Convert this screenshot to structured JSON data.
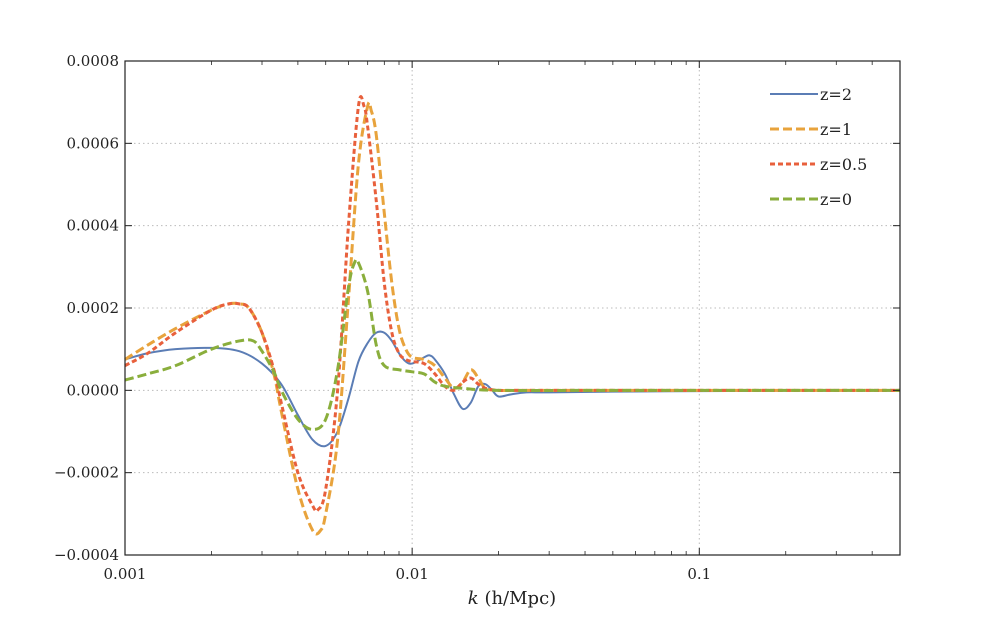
{
  "chart_data": {
    "type": "line",
    "title": "",
    "xlabel_italic": "k",
    "xlabel_rest": " (h/Mpc)",
    "ylabel": "",
    "x_scale": "log",
    "xlim": [
      0.001,
      0.5
    ],
    "ylim": [
      -0.0004,
      0.0008
    ],
    "x_ticks": [
      {
        "value": 0.001,
        "label": "0.001"
      },
      {
        "value": 0.01,
        "label": "0.01"
      },
      {
        "value": 0.1,
        "label": "0.1"
      }
    ],
    "y_ticks": [
      {
        "value": 0.0008,
        "label": "0.0008"
      },
      {
        "value": 0.0006,
        "label": "0.0006"
      },
      {
        "value": 0.0004,
        "label": "0.0004"
      },
      {
        "value": 0.0002,
        "label": "0.0002"
      },
      {
        "value": 0.0,
        "label": "0.0000"
      },
      {
        "value": -0.0002,
        "label": "−0.0002"
      },
      {
        "value": -0.0004,
        "label": "−0.0004"
      }
    ],
    "grid": true,
    "legend_position": "top-right",
    "series": [
      {
        "name": "z=2",
        "color": "#5b7db5",
        "style": "solid",
        "points": [
          [
            0.001,
            7.5e-05
          ],
          [
            0.0012,
            9e-05
          ],
          [
            0.0015,
            0.0001
          ],
          [
            0.002,
            0.000103
          ],
          [
            0.0025,
            9.5e-05
          ],
          [
            0.003,
            6.5e-05
          ],
          [
            0.0035,
            1.5e-05
          ],
          [
            0.004,
            -6e-05
          ],
          [
            0.0045,
            -0.00012
          ],
          [
            0.005,
            -0.000135
          ],
          [
            0.0055,
            -0.0001
          ],
          [
            0.006,
            -2e-05
          ],
          [
            0.0065,
            7e-05
          ],
          [
            0.007,
            0.000115
          ],
          [
            0.0075,
            0.00014
          ],
          [
            0.008,
            0.00014
          ],
          [
            0.0085,
            0.00012
          ],
          [
            0.009,
            9e-05
          ],
          [
            0.0095,
            7e-05
          ],
          [
            0.01,
            6.5e-05
          ],
          [
            0.011,
            8e-05
          ],
          [
            0.0115,
            8.5e-05
          ],
          [
            0.012,
            7.5e-05
          ],
          [
            0.013,
            4e-05
          ],
          [
            0.014,
            -1e-05
          ],
          [
            0.015,
            -4.5e-05
          ],
          [
            0.016,
            -3e-05
          ],
          [
            0.017,
            1e-05
          ],
          [
            0.018,
            1.5e-05
          ],
          [
            0.019,
            0.0
          ],
          [
            0.02,
            -1.5e-05
          ],
          [
            0.022,
            -1e-05
          ],
          [
            0.025,
            -5e-06
          ],
          [
            0.03,
            -5e-06
          ],
          [
            0.05,
            -3e-06
          ],
          [
            0.1,
            -2e-06
          ],
          [
            0.2,
            -1e-06
          ],
          [
            0.5,
            -1e-06
          ]
        ]
      },
      {
        "name": "z=1",
        "color": "#e8a33c",
        "style": "dashed",
        "points": [
          [
            0.001,
            7.5e-05
          ],
          [
            0.0012,
            0.00011
          ],
          [
            0.0015,
            0.00015
          ],
          [
            0.002,
            0.000195
          ],
          [
            0.0023,
            0.00021
          ],
          [
            0.0025,
            0.00021
          ],
          [
            0.0027,
            0.0002
          ],
          [
            0.003,
            0.00014
          ],
          [
            0.0033,
            4e-05
          ],
          [
            0.0035,
            -5e-05
          ],
          [
            0.004,
            -0.00024
          ],
          [
            0.0045,
            -0.00034
          ],
          [
            0.0048,
            -0.00034
          ],
          [
            0.005,
            -0.0003
          ],
          [
            0.0055,
            -0.00012
          ],
          [
            0.006,
            0.00022
          ],
          [
            0.0065,
            0.00055
          ],
          [
            0.007,
            0.00069
          ],
          [
            0.0072,
            0.00068
          ],
          [
            0.0075,
            0.00062
          ],
          [
            0.008,
            0.00043
          ],
          [
            0.0085,
            0.00026
          ],
          [
            0.009,
            0.00015
          ],
          [
            0.0095,
            0.0001
          ],
          [
            0.01,
            8e-05
          ],
          [
            0.011,
            7.5e-05
          ],
          [
            0.012,
            6e-05
          ],
          [
            0.013,
            3e-05
          ],
          [
            0.014,
            5e-06
          ],
          [
            0.015,
            2e-05
          ],
          [
            0.016,
            5e-05
          ],
          [
            0.017,
            3e-05
          ],
          [
            0.018,
            5e-06
          ],
          [
            0.02,
            0.0
          ],
          [
            0.025,
            0.0
          ],
          [
            0.03,
            0.0
          ],
          [
            0.05,
            0.0
          ],
          [
            0.1,
            0.0
          ],
          [
            0.5,
            0.0
          ]
        ]
      },
      {
        "name": "z=0.5",
        "color": "#e8603c",
        "style": "dotted",
        "points": [
          [
            0.001,
            6e-05
          ],
          [
            0.0012,
            9e-05
          ],
          [
            0.0015,
            0.00014
          ],
          [
            0.002,
            0.000195
          ],
          [
            0.0023,
            0.00021
          ],
          [
            0.0025,
            0.00021
          ],
          [
            0.0027,
            0.0002
          ],
          [
            0.003,
            0.00014
          ],
          [
            0.0033,
            5e-05
          ],
          [
            0.0035,
            -3e-05
          ],
          [
            0.004,
            -0.0002
          ],
          [
            0.0045,
            -0.00028
          ],
          [
            0.0047,
            -0.00029
          ],
          [
            0.005,
            -0.00024
          ],
          [
            0.0055,
            0.0
          ],
          [
            0.006,
            0.0004
          ],
          [
            0.0065,
            0.00069
          ],
          [
            0.0068,
            0.00069
          ],
          [
            0.007,
            0.00064
          ],
          [
            0.0075,
            0.00046
          ],
          [
            0.008,
            0.00026
          ],
          [
            0.0085,
            0.00014
          ],
          [
            0.009,
            9e-05
          ],
          [
            0.0095,
            7.5e-05
          ],
          [
            0.01,
            7e-05
          ],
          [
            0.011,
            6.5e-05
          ],
          [
            0.012,
            4e-05
          ],
          [
            0.013,
            1e-05
          ],
          [
            0.014,
            0.0
          ],
          [
            0.015,
            2e-05
          ],
          [
            0.016,
            3e-05
          ],
          [
            0.017,
            1.5e-05
          ],
          [
            0.018,
            5e-06
          ],
          [
            0.02,
            0.0
          ],
          [
            0.025,
            0.0
          ],
          [
            0.03,
            0.0
          ],
          [
            0.05,
            0.0
          ],
          [
            0.1,
            0.0
          ],
          [
            0.5,
            0.0
          ]
        ]
      },
      {
        "name": "z=0",
        "color": "#8aae3c",
        "style": "dashed",
        "points": [
          [
            0.001,
            2.5e-05
          ],
          [
            0.0012,
            4e-05
          ],
          [
            0.0015,
            6e-05
          ],
          [
            0.002,
            0.0001
          ],
          [
            0.0025,
            0.00012
          ],
          [
            0.0028,
            0.00012
          ],
          [
            0.003,
            9.5e-05
          ],
          [
            0.0033,
            4.5e-05
          ],
          [
            0.0035,
            0.0
          ],
          [
            0.004,
            -7e-05
          ],
          [
            0.0045,
            -9.5e-05
          ],
          [
            0.005,
            -7e-05
          ],
          [
            0.0055,
            5e-05
          ],
          [
            0.006,
            0.00025
          ],
          [
            0.0063,
            0.00031
          ],
          [
            0.0065,
            0.00031
          ],
          [
            0.007,
            0.00024
          ],
          [
            0.0075,
            0.00011
          ],
          [
            0.008,
            6e-05
          ],
          [
            0.009,
            5e-05
          ],
          [
            0.01,
            4.5e-05
          ],
          [
            0.011,
            4e-05
          ],
          [
            0.012,
            2e-05
          ],
          [
            0.013,
            1e-05
          ],
          [
            0.015,
            5e-06
          ],
          [
            0.02,
            0.0
          ],
          [
            0.05,
            0.0
          ],
          [
            0.1,
            0.0
          ],
          [
            0.5,
            0.0
          ]
        ]
      }
    ]
  }
}
